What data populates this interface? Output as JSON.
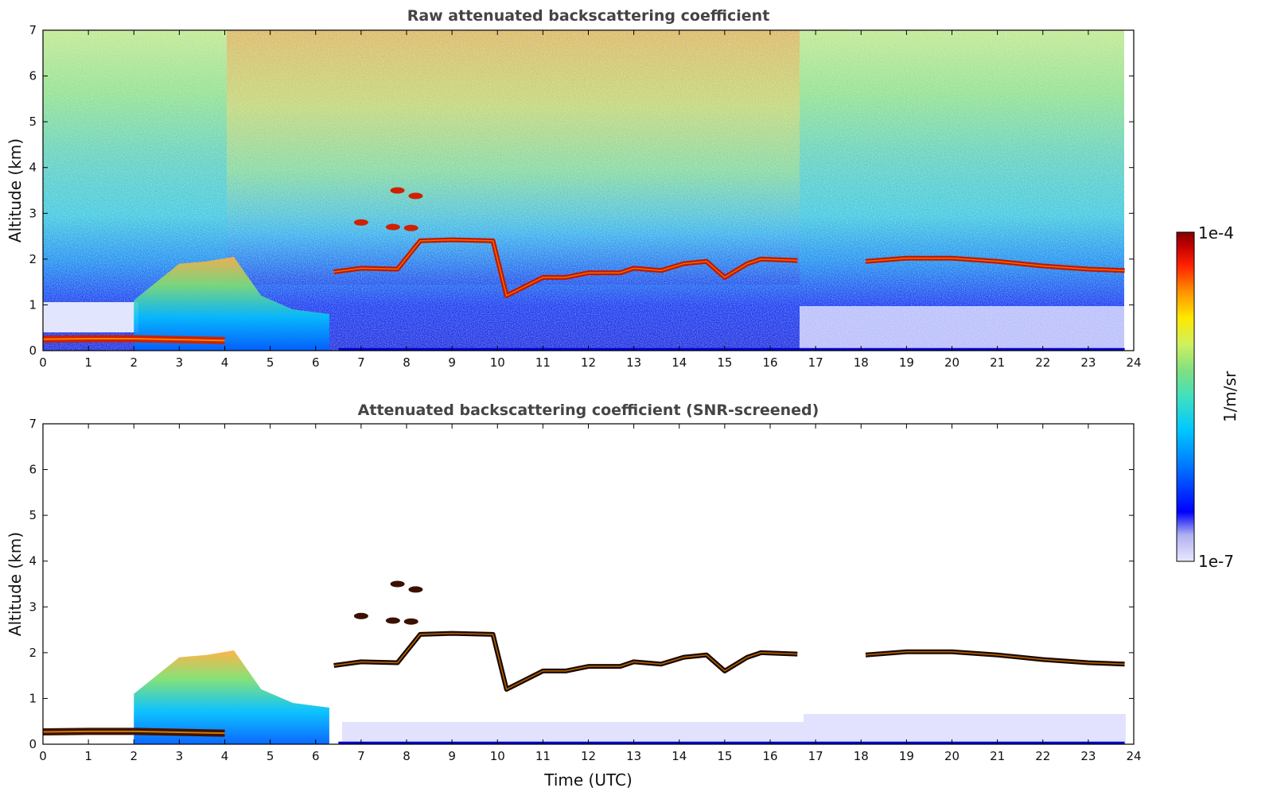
{
  "chart_data": [
    {
      "type": "heatmap",
      "title": "Raw attenuated backscattering coefficient",
      "xlabel": "",
      "ylabel": "Altitude (km)",
      "xlim": [
        0,
        24
      ],
      "ylim": [
        0,
        7
      ],
      "xticks": [
        0,
        1,
        2,
        3,
        4,
        5,
        6,
        7,
        8,
        9,
        10,
        11,
        12,
        13,
        14,
        15,
        16,
        17,
        18,
        19,
        20,
        21,
        22,
        23,
        24
      ],
      "yticks": [
        0,
        1,
        2,
        3,
        4,
        5,
        6,
        7
      ],
      "features": {
        "surface_layer": [
          [
            0,
            0.25
          ],
          [
            1,
            0.26
          ],
          [
            2,
            0.26
          ],
          [
            3,
            0.24
          ],
          [
            4,
            0.22
          ]
        ],
        "convective_boundary": [
          [
            2,
            1.1
          ],
          [
            3,
            1.9
          ],
          [
            3.6,
            1.95
          ],
          [
            4.2,
            2.05
          ],
          [
            4.8,
            1.2
          ],
          [
            5.5,
            0.9
          ],
          [
            6.3,
            0.8
          ]
        ],
        "cloud_base_layer": [
          [
            6.4,
            1.72
          ],
          [
            7,
            1.8
          ],
          [
            7.8,
            1.78
          ],
          [
            8.3,
            2.4
          ],
          [
            9,
            2.42
          ],
          [
            9.9,
            2.4
          ],
          [
            10.2,
            1.2
          ],
          [
            11,
            1.6
          ],
          [
            11.5,
            1.6
          ],
          [
            12,
            1.7
          ],
          [
            12.7,
            1.7
          ],
          [
            13,
            1.8
          ],
          [
            13.6,
            1.75
          ],
          [
            14.1,
            1.9
          ],
          [
            14.6,
            1.95
          ],
          [
            15,
            1.6
          ],
          [
            15.5,
            1.9
          ],
          [
            15.8,
            2.0
          ],
          [
            16.6,
            1.97
          ],
          [
            18.1,
            1.95
          ],
          [
            19,
            2.02
          ],
          [
            20,
            2.02
          ],
          [
            21,
            1.95
          ],
          [
            22,
            1.85
          ],
          [
            23,
            1.78
          ],
          [
            23.8,
            1.75
          ]
        ],
        "isolated_clouds": [
          [
            7.7,
            2.7
          ],
          [
            8.1,
            2.68
          ],
          [
            7.8,
            3.5
          ],
          [
            8.2,
            3.38
          ],
          [
            7,
            2.8
          ]
        ],
        "noise_level": "high"
      }
    },
    {
      "type": "heatmap",
      "title": "Attenuated backscattering coefficient (SNR-screened)",
      "xlabel": "Time (UTC)",
      "ylabel": "Altitude (km)",
      "xlim": [
        0,
        24
      ],
      "ylim": [
        0,
        7
      ],
      "xticks": [
        0,
        1,
        2,
        3,
        4,
        5,
        6,
        7,
        8,
        9,
        10,
        11,
        12,
        13,
        14,
        15,
        16,
        17,
        18,
        19,
        20,
        21,
        22,
        23,
        24
      ],
      "yticks": [
        0,
        1,
        2,
        3,
        4,
        5,
        6,
        7
      ],
      "features": {
        "surface_layer": [
          [
            0,
            0.27
          ],
          [
            1,
            0.28
          ],
          [
            2,
            0.28
          ],
          [
            3,
            0.26
          ],
          [
            4,
            0.24
          ]
        ],
        "convective_boundary": [
          [
            2,
            1.1
          ],
          [
            3,
            1.9
          ],
          [
            3.6,
            1.95
          ],
          [
            4.2,
            2.05
          ],
          [
            4.8,
            1.2
          ],
          [
            5.5,
            0.9
          ],
          [
            6.3,
            0.8
          ]
        ],
        "cloud_base_layer": [
          [
            6.4,
            1.72
          ],
          [
            7,
            1.8
          ],
          [
            7.8,
            1.78
          ],
          [
            8.3,
            2.4
          ],
          [
            9,
            2.42
          ],
          [
            9.9,
            2.4
          ],
          [
            10.2,
            1.2
          ],
          [
            11,
            1.6
          ],
          [
            11.5,
            1.6
          ],
          [
            12,
            1.7
          ],
          [
            12.7,
            1.7
          ],
          [
            13,
            1.8
          ],
          [
            13.6,
            1.75
          ],
          [
            14.1,
            1.9
          ],
          [
            14.6,
            1.95
          ],
          [
            15,
            1.6
          ],
          [
            15.5,
            1.9
          ],
          [
            15.8,
            2.0
          ],
          [
            16.6,
            1.97
          ],
          [
            18.1,
            1.95
          ],
          [
            19,
            2.02
          ],
          [
            20,
            2.02
          ],
          [
            21,
            1.95
          ],
          [
            22,
            1.85
          ],
          [
            23,
            1.78
          ],
          [
            23.8,
            1.75
          ]
        ],
        "isolated_clouds": [
          [
            7.7,
            2.7
          ],
          [
            8.1,
            2.68
          ],
          [
            7.8,
            3.5
          ],
          [
            8.2,
            3.38
          ],
          [
            7,
            2.8
          ]
        ],
        "noise_level": "none"
      }
    }
  ],
  "colorbar": {
    "min_label": "1e-7",
    "max_label": "1e-4",
    "unit_label": "1/m/sr",
    "colors": [
      "#e8e8ff",
      "#c8c8f8",
      "#0000ff",
      "#0080ff",
      "#00c8ff",
      "#40e0c0",
      "#80e080",
      "#d0f060",
      "#ffe800",
      "#ff9000",
      "#ff2000",
      "#c00000",
      "#800000"
    ]
  }
}
